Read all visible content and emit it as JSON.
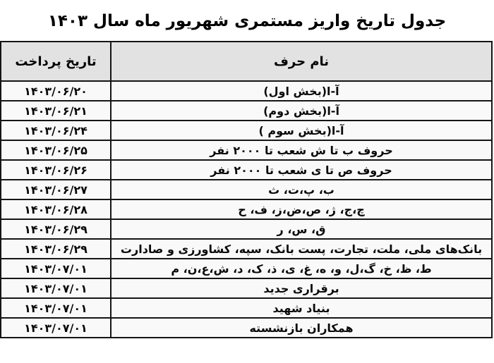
{
  "title": "جدول تاریخ واریز مستمری شهریور ماه سال ۱۴۰۳",
  "table": {
    "headers": {
      "name": "نام حرف",
      "date": "تاریخ پرداخت"
    },
    "rows": [
      {
        "date": "۱۴۰۳/۰۶/۲۰",
        "name": "آ-ا(بخش اول)"
      },
      {
        "date": "۱۴۰۳/۰۶/۲۱",
        "name": "آ-ا(بخش دوم)"
      },
      {
        "date": "۱۴۰۳/۰۶/۲۴",
        "name": "آ-ا(بخش سوم )"
      },
      {
        "date": "۱۴۰۳/۰۶/۲۵",
        "name": "حروف ب تا ش شعب تا ۲۰۰۰ نفر"
      },
      {
        "date": "۱۴۰۳/۰۶/۲۶",
        "name": "حروف ص تا ی  شعب تا ۲۰۰۰ نفر"
      },
      {
        "date": "۱۴۰۳/۰۶/۲۷",
        "name": "ب، پ،ت، ث"
      },
      {
        "date": "۱۴۰۳/۰۶/۲۸",
        "name": "چ،ج، ژ، ص،ض،ز، ف، ح"
      },
      {
        "date": "۱۴۰۳/۰۶/۲۹",
        "name": "ق، س، ر"
      },
      {
        "date": "۱۴۰۳/۰۶/۲۹",
        "name": "بانک‌های ملی، ملت، تجارت، پست بانک، سپه، کشاورزی و صادارت"
      },
      {
        "date": "۱۴۰۳/۰۷/۰۱",
        "name": "ط، ظ، خ، گ،ل، و، ه، غ، ی، ذ، ک، د، ش،ع،ن، م"
      },
      {
        "date": "۱۴۰۳/۰۷/۰۱",
        "name": "برقراری جدید"
      },
      {
        "date": "۱۴۰۳/۰۷/۰۱",
        "name": "بنیاد شهید"
      },
      {
        "date": "۱۴۰۳/۰۷/۰۱",
        "name": "همکاران بازنشسته"
      }
    ]
  },
  "colors": {
    "header_background": "#e2e2e2",
    "row_background": "#f9f9f9",
    "border": "#151515",
    "text": "#000000"
  }
}
